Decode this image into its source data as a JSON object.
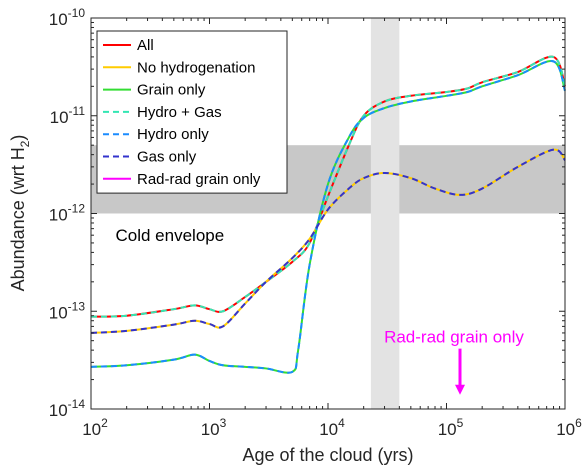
{
  "chart_data": {
    "type": "line",
    "xlabel": "Age of the cloud (yrs)",
    "ylabel_main": "Abundance (wrt H",
    "ylabel_sub": "2",
    "ylabel_close": ")",
    "xscale": "log",
    "yscale": "log",
    "xlim": [
      100,
      1000000
    ],
    "ylim": [
      1e-14,
      1e-10
    ],
    "x_ticks": [
      100,
      1000,
      10000,
      100000,
      1000000
    ],
    "x_tick_labels": [
      {
        "base": "10",
        "exp": "2"
      },
      {
        "base": "10",
        "exp": "3"
      },
      {
        "base": "10",
        "exp": "4"
      },
      {
        "base": "10",
        "exp": "5"
      },
      {
        "base": "10",
        "exp": "6"
      }
    ],
    "y_ticks": [
      1e-14,
      1e-13,
      1e-12,
      1e-11,
      1e-10
    ],
    "y_tick_labels": [
      {
        "base": "10",
        "exp": "-14"
      },
      {
        "base": "10",
        "exp": "-13"
      },
      {
        "base": "10",
        "exp": "-12"
      },
      {
        "base": "10",
        "exp": "-11"
      },
      {
        "base": "10",
        "exp": "-10"
      }
    ],
    "grid": false,
    "legend_position": "top-left",
    "colors": {
      "shaded_band": "#c8c8c8",
      "shaded_column": "#e3e3e3",
      "annotation": "#ff00ff"
    },
    "shaded_regions": [
      {
        "orientation": "horizontal",
        "y_range": [
          1e-12,
          5e-12
        ]
      },
      {
        "orientation": "vertical",
        "x_range": [
          23000,
          40000
        ]
      }
    ],
    "annotations": [
      {
        "text": "Cold envelope",
        "x": 1000,
        "y": 6e-13,
        "color": "#000000"
      },
      {
        "text": "Rad-rad grain only",
        "x": 130000,
        "y": 5.5e-14,
        "color": "#ff00ff",
        "arrow_to_y": 1.4e-14
      }
    ],
    "series": [
      {
        "name": "All",
        "color": "#ff0000",
        "dash": "solid",
        "x": [
          100,
          200,
          500,
          750,
          1000,
          1300,
          2000,
          3000,
          5000,
          7000,
          10000,
          15000,
          20000,
          30000,
          50000,
          100000,
          150000,
          200000,
          400000,
          800000,
          1000000
        ],
        "y": [
          8.8e-14,
          9e-14,
          1.05e-13,
          1.15e-13,
          1.05e-13,
          1e-13,
          1.4e-13,
          2e-13,
          3.2e-13,
          5e-13,
          1.5e-12,
          5e-12,
          1e-11,
          1.4e-11,
          1.6e-11,
          1.75e-11,
          1.9e-11,
          2.2e-11,
          2.8e-11,
          4e-11,
          2e-11
        ]
      },
      {
        "name": "No hydrogenation",
        "color": "#ffcc00",
        "dash": "solid",
        "x": [
          100,
          200,
          500,
          750,
          1000,
          1300,
          2000,
          3000,
          5000,
          7000,
          10000,
          15000,
          20000,
          30000,
          50000,
          80000,
          130000,
          200000,
          400000,
          800000,
          1000000
        ],
        "y": [
          6e-14,
          6.3e-14,
          7.3e-14,
          8e-14,
          7.4e-14,
          7e-14,
          1.2e-13,
          2e-13,
          3.5e-13,
          5.5e-13,
          1.1e-12,
          1.8e-12,
          2.3e-12,
          2.6e-12,
          2.3e-12,
          1.8e-12,
          1.55e-12,
          1.8e-12,
          3e-12,
          4.5e-12,
          3.5e-12
        ]
      },
      {
        "name": "Grain only",
        "color": "#33dd33",
        "dash": "solid",
        "x": [
          100,
          200,
          500,
          750,
          1000,
          1300,
          2000,
          3000,
          5000,
          5600,
          7000,
          10000,
          15000,
          20000,
          30000,
          50000,
          100000,
          150000,
          200000,
          400000,
          800000,
          1000000
        ],
        "y": [
          2.7e-14,
          2.8e-14,
          3.2e-14,
          3.6e-14,
          3.1e-14,
          2.8e-14,
          2.7e-14,
          2.6e-14,
          2.4e-14,
          4e-14,
          3e-13,
          2e-12,
          6e-12,
          9.5e-12,
          1.2e-11,
          1.4e-11,
          1.6e-11,
          1.75e-11,
          2e-11,
          2.6e-11,
          3.6e-11,
          1.8e-11
        ]
      },
      {
        "name": "Hydro + Gas",
        "color": "#33e6b3",
        "dash": "dashed",
        "x": [
          100,
          200,
          500,
          750,
          1000,
          1300,
          2000,
          3000,
          5000,
          7000,
          10000,
          15000,
          20000,
          30000,
          50000,
          100000,
          150000,
          200000,
          400000,
          800000,
          1000000
        ],
        "y": [
          8.8e-14,
          9e-14,
          1.05e-13,
          1.15e-13,
          1.05e-13,
          1e-13,
          1.4e-13,
          2e-13,
          3.2e-13,
          5e-13,
          1.5e-12,
          5e-12,
          1e-11,
          1.4e-11,
          1.6e-11,
          1.75e-11,
          1.9e-11,
          2.2e-11,
          2.8e-11,
          4e-11,
          2e-11
        ]
      },
      {
        "name": "Hydro only",
        "color": "#1a8cff",
        "dash": "dashed",
        "x": [
          100,
          200,
          500,
          750,
          1000,
          1300,
          2000,
          3000,
          5000,
          5600,
          7000,
          10000,
          15000,
          20000,
          30000,
          50000,
          100000,
          150000,
          200000,
          400000,
          800000,
          1000000
        ],
        "y": [
          2.7e-14,
          2.8e-14,
          3.2e-14,
          3.6e-14,
          3.1e-14,
          2.8e-14,
          2.7e-14,
          2.6e-14,
          2.4e-14,
          4e-14,
          3e-13,
          2e-12,
          6e-12,
          9.5e-12,
          1.2e-11,
          1.4e-11,
          1.6e-11,
          1.75e-11,
          2e-11,
          2.6e-11,
          3.6e-11,
          1.8e-11
        ]
      },
      {
        "name": "Gas only",
        "color": "#3333cc",
        "dash": "dashed",
        "x": [
          100,
          200,
          500,
          750,
          1000,
          1300,
          2000,
          3000,
          5000,
          7000,
          10000,
          15000,
          20000,
          30000,
          50000,
          80000,
          130000,
          200000,
          400000,
          800000,
          1000000
        ],
        "y": [
          6e-14,
          6.3e-14,
          7.3e-14,
          8e-14,
          7.4e-14,
          7e-14,
          1.2e-13,
          2e-13,
          3.5e-13,
          5.5e-13,
          1.1e-12,
          1.8e-12,
          2.3e-12,
          2.6e-12,
          2.3e-12,
          1.8e-12,
          1.55e-12,
          1.8e-12,
          3e-12,
          4.5e-12,
          3.5e-12
        ]
      },
      {
        "name": "Rad-rad grain only",
        "color": "#ff00ff",
        "dash": "solid",
        "x": [],
        "y": []
      }
    ]
  }
}
